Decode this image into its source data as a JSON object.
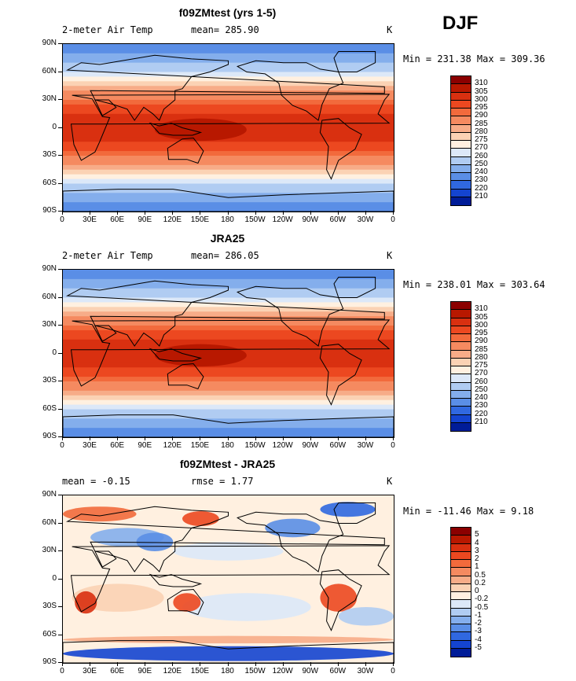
{
  "season": "DJF",
  "x_ticks": [
    "0",
    "30E",
    "60E",
    "90E",
    "120E",
    "150E",
    "180",
    "150W",
    "120W",
    "90W",
    "60W",
    "30W",
    "0"
  ],
  "y_ticks": [
    "90N",
    "60N",
    "30N",
    "0",
    "30S",
    "60S",
    "90S"
  ],
  "panels": [
    {
      "title": "f09ZMtest (yrs 1-5)",
      "left_label": "2-meter Air Temp",
      "center_label": "mean= 285.90",
      "right_label": "K",
      "minmax": "Min = 231.38 Max = 309.36",
      "colorbar": {
        "labels": [
          "310",
          "305",
          "300",
          "295",
          "290",
          "285",
          "280",
          "275",
          "270",
          "260",
          "250",
          "240",
          "230",
          "220",
          "210"
        ],
        "colors": [
          "#8b0000",
          "#b81800",
          "#d93010",
          "#ec4820",
          "#f26a3c",
          "#f58a60",
          "#f7ac88",
          "#fbd2b4",
          "#fff0e0",
          "#dce8f8",
          "#b0ccf2",
          "#84aeec",
          "#5a8ee6",
          "#3068e0",
          "#1444d0",
          "#001c98"
        ]
      }
    },
    {
      "title": "JRA25",
      "left_label": "2-meter Air Temp",
      "center_label": "mean= 286.05",
      "right_label": "K",
      "minmax": "Min = 238.01 Max = 303.64",
      "colorbar": {
        "labels": [
          "310",
          "305",
          "300",
          "295",
          "290",
          "285",
          "280",
          "275",
          "270",
          "260",
          "250",
          "240",
          "230",
          "220",
          "210"
        ],
        "colors": [
          "#8b0000",
          "#b81800",
          "#d93010",
          "#ec4820",
          "#f26a3c",
          "#f58a60",
          "#f7ac88",
          "#fbd2b4",
          "#fff0e0",
          "#dce8f8",
          "#b0ccf2",
          "#84aeec",
          "#5a8ee6",
          "#3068e0",
          "#1444d0",
          "#001c98"
        ]
      }
    },
    {
      "title": "f09ZMtest - JRA25",
      "left_label": "mean =   -0.15",
      "center_label": "rmse =    1.77",
      "right_label": "K",
      "minmax": "Min = -11.46 Max =   9.18",
      "colorbar": {
        "labels": [
          "5",
          "4",
          "3",
          "2",
          "1",
          "0.5",
          "0.2",
          "0",
          "-0.2",
          "-0.5",
          "-1",
          "-2",
          "-3",
          "-4",
          "-5"
        ],
        "colors": [
          "#8b0000",
          "#b81800",
          "#d93010",
          "#ec4820",
          "#f26a3c",
          "#f58a60",
          "#f7ac88",
          "#fbd2b4",
          "#fff0e0",
          "#dce8f8",
          "#b0ccf2",
          "#84aeec",
          "#5a8ee6",
          "#3068e0",
          "#1444d0",
          "#001c98"
        ]
      }
    }
  ]
}
